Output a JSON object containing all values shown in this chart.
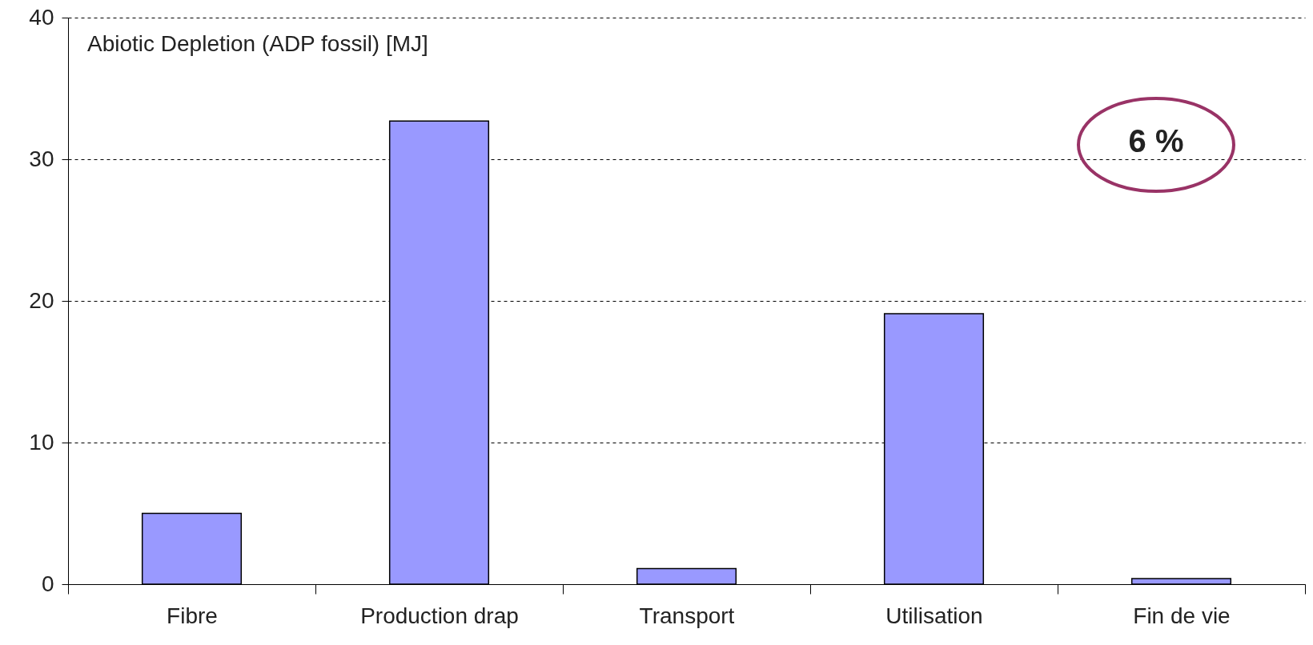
{
  "chart_data": {
    "type": "bar",
    "title": "Abiotic Depletion (ADP fossil) [MJ]",
    "categories": [
      "Fibre",
      "Production drap",
      "Transport",
      "Utilisation",
      "Fin de vie"
    ],
    "values": [
      5.0,
      32.7,
      1.1,
      19.1,
      0.4
    ],
    "color": "#9999ff",
    "ylim": [
      0,
      40
    ],
    "yticks": [
      0,
      10,
      20,
      30,
      40
    ],
    "grid": "y",
    "annotations": [
      "6 %"
    ]
  }
}
